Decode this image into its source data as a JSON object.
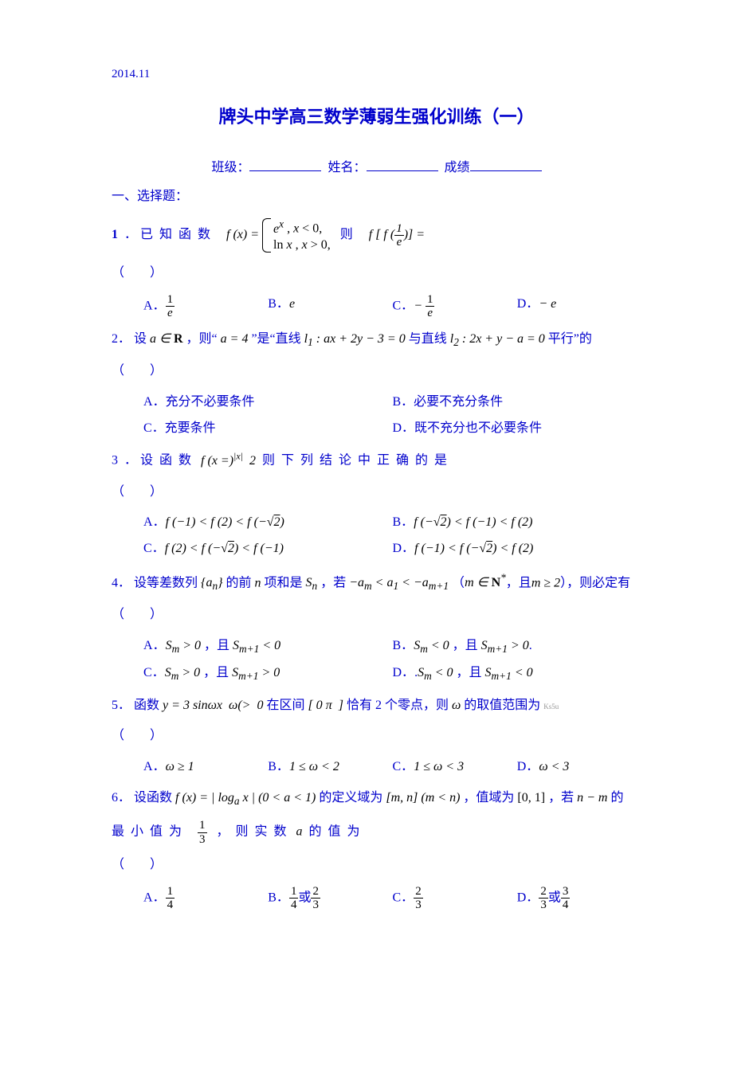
{
  "date": "2014.11",
  "title": "牌头中学高三数学薄弱生强化训练（一）",
  "header": {
    "class_label": "班级：",
    "name_label": "姓名：",
    "score_label": "成绩"
  },
  "section_mc": "一、选择题：",
  "paren": "（　　）",
  "q1": {
    "num": "1",
    "dot": "．",
    "pre": "已知函数",
    "fx": "f (x) =",
    "row1": "eˣ , x < 0,",
    "row2": "ln x , x > 0,",
    "post": "则",
    "expr_l": "f [ f (",
    "expr_r": ")] =",
    "A": "A．",
    "B": "B．",
    "C": "C．",
    "D": "D．",
    "optB": "e",
    "optD": "− e",
    "neg": "−"
  },
  "q2": {
    "num": "2．",
    "pre": "设",
    "a_in_R": "a ∈ R",
    "mid1": "，则“",
    "aeq4": "a = 4",
    "mid2": "”是“直线",
    "l1": "l₁ : ax + 2y − 3 = 0",
    "mid3": "与直线",
    "l2": "l₂ : 2x + y − a = 0",
    "mid4": "平行”的",
    "A": "A．充分不必要条件",
    "B": "B．必要不充分条件",
    "C": "C．充要条件",
    "D": "D．既不充分也不必要条件"
  },
  "q3": {
    "num": "3",
    "dot": "．",
    "pre": "设函数",
    "fx": "f (x =)",
    "absx": "|x|",
    "two": "2",
    "post": "则下列结论中正确的是",
    "A_pre": "A．",
    "A_body": "f (−1) < f (2) < f (−√2)",
    "B_pre": "B．",
    "B_body": "f (−√2) < f (−1) < f (2)",
    "C_pre": "C．",
    "C_body": "f (2) < f (−√2) < f (−1)",
    "D_pre": "D．",
    "D_body": "f (−1) < f (−√2) < f (2)"
  },
  "q4": {
    "num": "4．",
    "pre": "设等差数列",
    "an": "{aₙ}",
    "mid1": "的前",
    "n": "n",
    "mid2": "项和是",
    "Sn": "Sₙ",
    "mid3": "，若",
    "ineq": "−aₘ < a₁ < −aₘ₊₁",
    "cond_l": "（",
    "cond": "m ∈ N*",
    "cond_mid": "，且",
    "cond2": "m ≥ 2",
    "cond_r": "），则必定有",
    "A_pre": "A．",
    "A_body": "Sₘ > 0 ，且 Sₘ₊₁ < 0",
    "B_pre": "B．",
    "B_body": "Sₘ < 0 ，且 Sₘ₊₁ > 0",
    "C_pre": "C．",
    "C_body": "Sₘ > 0 ，且 Sₘ₊₁ > 0",
    "D_pre": "D．",
    "D_body": "Sₘ < 0 ，且 Sₘ₊₁ < 0"
  },
  "q5": {
    "num": "5．",
    "pre": "函数",
    "y": "y = 3 sin ωx ω(> 0",
    "mid1": "在区间",
    "intv": "[ 0 π ]",
    "mid2": "恰有 2 个零点，则",
    "omega": "ω",
    "mid3": "的取值范围为",
    "tiny": "Ks5u",
    "A_pre": "A．",
    "A_body": "ω ≥ 1",
    "B_pre": "B．",
    "B_body": "1 ≤ ω < 2",
    "C_pre": "C．",
    "C_body": "1 ≤ ω < 3",
    "D_pre": "D．",
    "D_body": "ω < 3"
  },
  "q6": {
    "num": "6．",
    "pre": "设函数",
    "fx": "f (x) = | logₐ x | (0 < a < 1)",
    "mid1": "的定义域为",
    "dom": "[m, n] (m < n)",
    "mid2": "，值域为",
    "rng": "[0, 1]",
    "mid3": "，若",
    "nm": "n − m",
    "mid4": "的",
    "line2a": "最小值为",
    "line2b": "，则实数",
    "a": "a",
    "line2c": "的值为",
    "A_pre": "A．",
    "B_pre": "B．",
    "B_mid": "或",
    "C_pre": "C．",
    "D_pre": "D．",
    "D_mid": "或",
    "f13n": "1",
    "f13d": "3",
    "f14n": "1",
    "f14d": "4",
    "f23n": "2",
    "f23d": "3",
    "f34n": "3",
    "f34d": "4"
  }
}
